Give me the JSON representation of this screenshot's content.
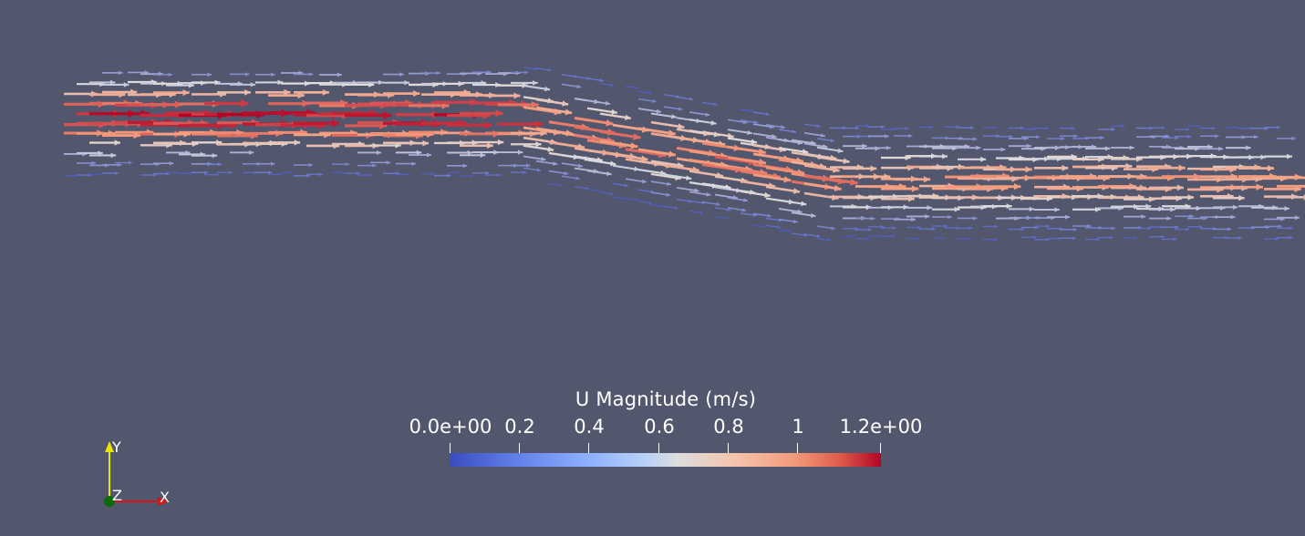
{
  "colorbar": {
    "title": "U Magnitude (m/s)",
    "tick_labels": [
      "0.0e+00",
      "0.2",
      "0.4",
      "0.6",
      "0.8",
      "1",
      "1.2e+00"
    ],
    "tick_values": [
      0,
      0.2,
      0.4,
      0.6,
      0.8,
      1.0,
      1.2
    ],
    "range": [
      0,
      1.2
    ],
    "colors": [
      "#3b4cc0",
      "#dddddd",
      "#b40426"
    ]
  },
  "axes_triad": {
    "x_label": "X",
    "y_label": "Y",
    "z_label": "Z",
    "x_color": "#e01010",
    "y_color": "#e6e600",
    "z_color": "#006400"
  },
  "background_color": "#52576e",
  "glyph_icon": "arrow-glyph"
}
